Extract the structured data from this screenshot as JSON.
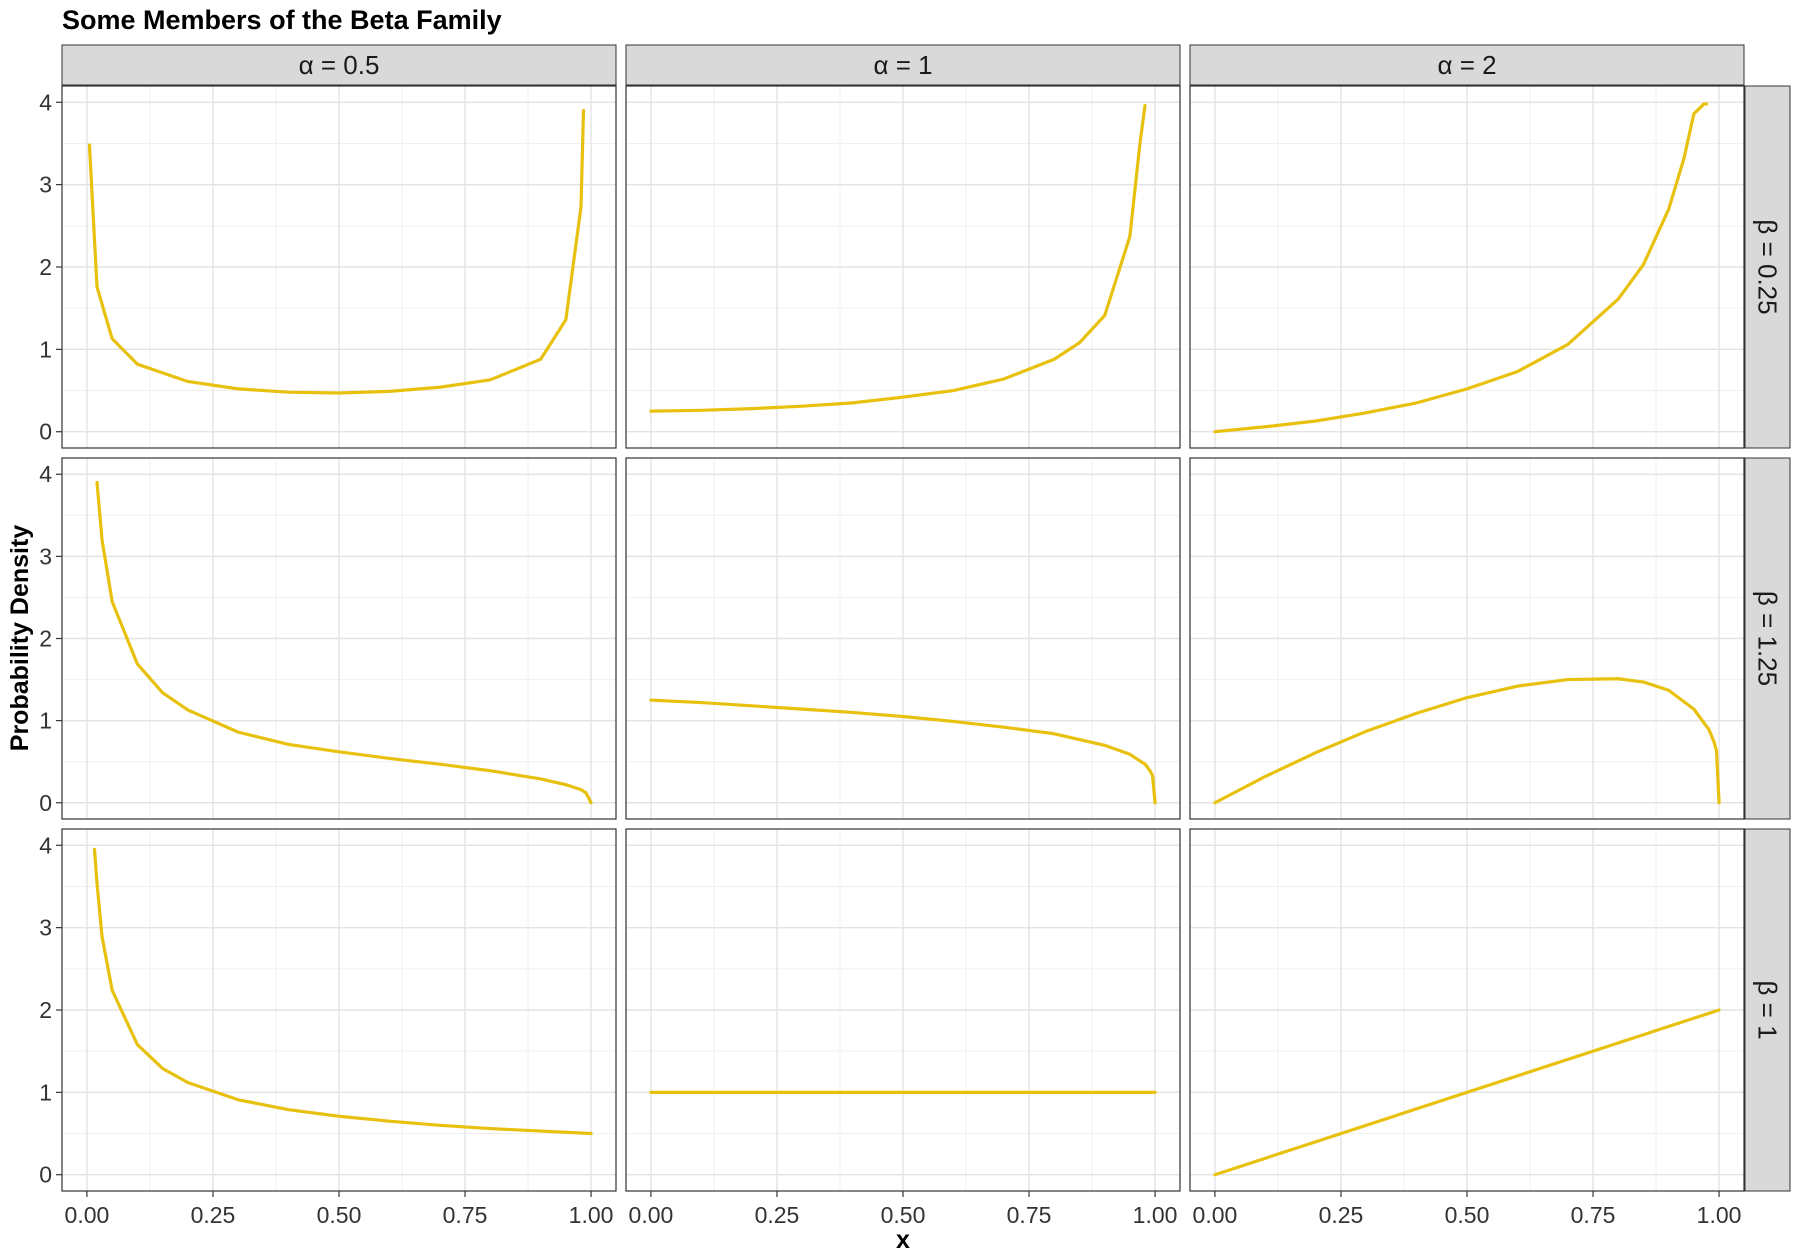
{
  "chart_data": {
    "type": "line",
    "title": "Some Members of the Beta Family",
    "xlabel": "x",
    "ylabel": "Probability Density",
    "xlim": [
      0,
      1
    ],
    "ylim": [
      0,
      4
    ],
    "x_ticks": [
      "0.00",
      "0.25",
      "0.50",
      "0.75",
      "1.00"
    ],
    "y_ticks": [
      "0",
      "1",
      "2",
      "3",
      "4"
    ],
    "grid": true,
    "line_color": "#E8C10E",
    "col_facets": [
      "α = 0.5",
      "α = 1",
      "α = 2"
    ],
    "row_facets": [
      "β = 0.25",
      "β = 1.25",
      "β = 1"
    ],
    "panels": [
      {
        "alpha": 0.5,
        "beta": 0.25,
        "x": [
          0.005,
          0.02,
          0.05,
          0.1,
          0.2,
          0.3,
          0.4,
          0.5,
          0.6,
          0.7,
          0.8,
          0.9,
          0.95,
          0.98,
          0.985
        ],
        "y": [
          3.48,
          1.76,
          1.13,
          0.82,
          0.61,
          0.52,
          0.48,
          0.47,
          0.49,
          0.54,
          0.63,
          0.88,
          1.36,
          2.73,
          3.9
        ]
      },
      {
        "alpha": 1,
        "beta": 0.25,
        "x": [
          0.0,
          0.1,
          0.2,
          0.3,
          0.4,
          0.5,
          0.6,
          0.7,
          0.8,
          0.85,
          0.9,
          0.95,
          0.97,
          0.98,
          0.98
        ],
        "y": [
          0.25,
          0.26,
          0.28,
          0.31,
          0.35,
          0.42,
          0.5,
          0.64,
          0.88,
          1.08,
          1.41,
          2.37,
          3.5,
          3.96,
          3.96
        ]
      },
      {
        "alpha": 2,
        "beta": 0.25,
        "x": [
          0.0,
          0.1,
          0.2,
          0.3,
          0.4,
          0.5,
          0.6,
          0.7,
          0.8,
          0.85,
          0.9,
          0.93,
          0.95,
          0.97,
          0.975
        ],
        "y": [
          0.0,
          0.06,
          0.13,
          0.23,
          0.35,
          0.52,
          0.73,
          1.06,
          1.61,
          2.03,
          2.7,
          3.31,
          3.86,
          3.98,
          3.98
        ]
      },
      {
        "alpha": 0.5,
        "beta": 1.25,
        "x": [
          0.02,
          0.03,
          0.05,
          0.1,
          0.15,
          0.2,
          0.3,
          0.4,
          0.5,
          0.6,
          0.7,
          0.8,
          0.9,
          0.95,
          0.98,
          0.99,
          1.0
        ],
        "y": [
          3.9,
          3.2,
          2.45,
          1.69,
          1.34,
          1.13,
          0.86,
          0.71,
          0.62,
          0.54,
          0.47,
          0.39,
          0.29,
          0.22,
          0.16,
          0.12,
          0.0
        ]
      },
      {
        "alpha": 1,
        "beta": 1.25,
        "x": [
          0.0,
          0.1,
          0.2,
          0.3,
          0.4,
          0.5,
          0.6,
          0.7,
          0.8,
          0.9,
          0.95,
          0.98,
          0.99,
          0.995,
          1.0
        ],
        "y": [
          1.25,
          1.22,
          1.18,
          1.14,
          1.1,
          1.05,
          0.99,
          0.92,
          0.84,
          0.7,
          0.59,
          0.47,
          0.39,
          0.33,
          0.0
        ]
      },
      {
        "alpha": 2,
        "beta": 1.25,
        "x": [
          0.0,
          0.1,
          0.2,
          0.3,
          0.4,
          0.5,
          0.6,
          0.7,
          0.8,
          0.85,
          0.9,
          0.95,
          0.98,
          0.99,
          0.995,
          1.0
        ],
        "y": [
          0.0,
          0.32,
          0.61,
          0.87,
          1.09,
          1.28,
          1.42,
          1.5,
          1.51,
          1.47,
          1.37,
          1.14,
          0.89,
          0.74,
          0.63,
          0.0
        ]
      },
      {
        "alpha": 0.5,
        "beta": 1,
        "x": [
          0.015,
          0.02,
          0.03,
          0.05,
          0.1,
          0.15,
          0.2,
          0.3,
          0.4,
          0.5,
          0.6,
          0.7,
          0.8,
          0.9,
          1.0
        ],
        "y": [
          3.95,
          3.54,
          2.89,
          2.24,
          1.58,
          1.29,
          1.12,
          0.91,
          0.79,
          0.71,
          0.65,
          0.6,
          0.56,
          0.53,
          0.5
        ]
      },
      {
        "alpha": 1,
        "beta": 1,
        "x": [
          0.0,
          1.0
        ],
        "y": [
          1.0,
          1.0
        ]
      },
      {
        "alpha": 2,
        "beta": 1,
        "x": [
          0.0,
          1.0
        ],
        "y": [
          0.0,
          2.0
        ]
      }
    ]
  }
}
